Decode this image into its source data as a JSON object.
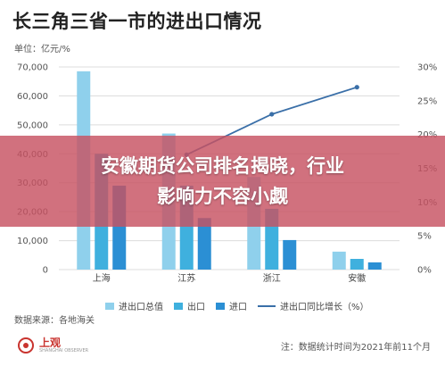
{
  "title": "长三角三省一市的进出口情况",
  "unit_label": "单位：亿元/%",
  "chart_data": {
    "type": "bar",
    "categories": [
      "上海",
      "江苏",
      "浙江",
      "安徽"
    ],
    "series": [
      {
        "name": "进出口总值",
        "type": "bar",
        "axis": "left",
        "color": "#8fd0ec",
        "values": [
          68500,
          47000,
          32000,
          6200
        ]
      },
      {
        "name": "出口",
        "type": "bar",
        "axis": "left",
        "color": "#3fb0de",
        "values": [
          40000,
          29000,
          21000,
          3700
        ]
      },
      {
        "name": "进口",
        "type": "bar",
        "axis": "left",
        "color": "#2b8fd4",
        "values": [
          29000,
          17800,
          10200,
          2500
        ]
      },
      {
        "name": "进出口同比增长（%）",
        "type": "line",
        "axis": "right",
        "color": "#3a6fa8",
        "values": [
          null,
          17,
          23,
          27
        ]
      }
    ],
    "y_left": {
      "ticks": [
        "0",
        "10,000",
        "20,000",
        "30,000",
        "40,000",
        "50,000",
        "60,000",
        "70,000"
      ],
      "lim": [
        0,
        70000
      ]
    },
    "y_right": {
      "ticks": [
        "0%",
        "5%",
        "10%",
        "15%",
        "20%",
        "25%",
        "30%"
      ],
      "lim": [
        0,
        30
      ]
    },
    "grid": true,
    "legend": "bottom"
  },
  "legend": [
    {
      "label": "进出口总值",
      "color": "#8fd0ec",
      "kind": "bar"
    },
    {
      "label": "出口",
      "color": "#3fb0de",
      "kind": "bar"
    },
    {
      "label": "进口",
      "color": "#2b8fd4",
      "kind": "bar"
    },
    {
      "label": "进出口同比增长（%）",
      "color": "#3a6fa8",
      "kind": "line"
    }
  ],
  "source": "数据来源：各地海关",
  "logo": {
    "name": "上观",
    "sub": "SHANGHAI OBSERVER"
  },
  "note": "注：数据统计时间为2021年前11个月",
  "banner": {
    "line1": "安徽期货公司排名揭晓，行业",
    "line2": "影响力不容小觑"
  }
}
